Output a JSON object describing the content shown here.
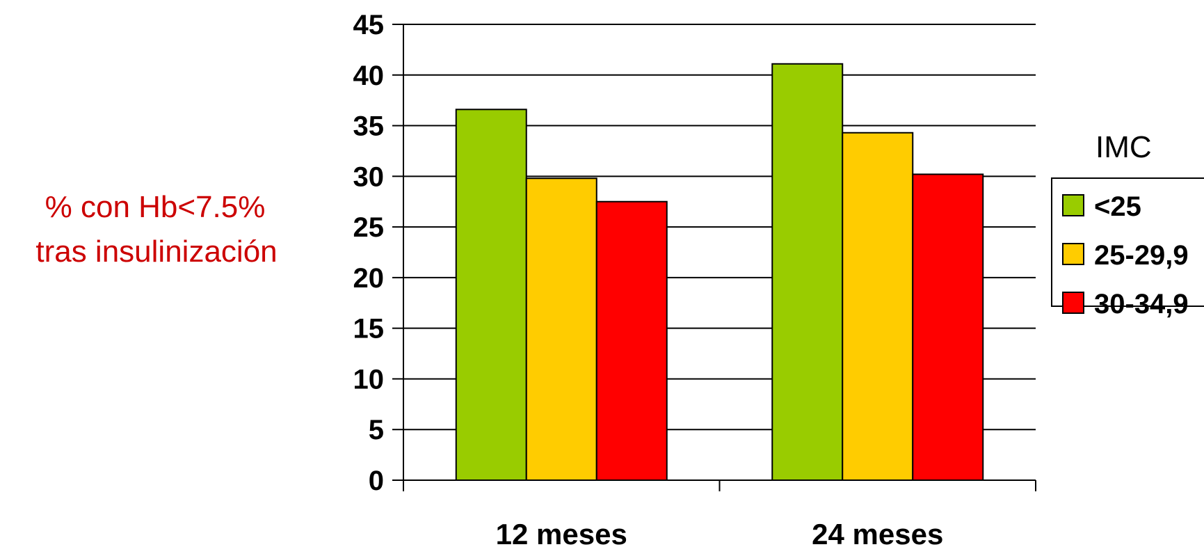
{
  "chart_data": {
    "type": "bar",
    "title": "",
    "xlabel": "",
    "ylabel_lines": [
      "% con Hb<7.5%",
      "tras insulinización"
    ],
    "categories": [
      "12 meses",
      "24 meses"
    ],
    "ylim": [
      0,
      45
    ],
    "yticks": [
      0,
      5,
      10,
      15,
      20,
      25,
      30,
      35,
      40,
      45
    ],
    "grid": true,
    "legend": {
      "title": "IMC",
      "placement": "right",
      "entries": [
        "<25",
        "25-29,9",
        "30-34,9"
      ]
    },
    "series": [
      {
        "name": "<25",
        "values": [
          36.6,
          41.1
        ],
        "color": "#99cc00"
      },
      {
        "name": "25-29,9",
        "values": [
          29.8,
          34.3
        ],
        "color": "#ffcc00"
      },
      {
        "name": "30-34,9",
        "values": [
          27.5,
          30.2
        ],
        "color": "#ff0000"
      }
    ]
  }
}
